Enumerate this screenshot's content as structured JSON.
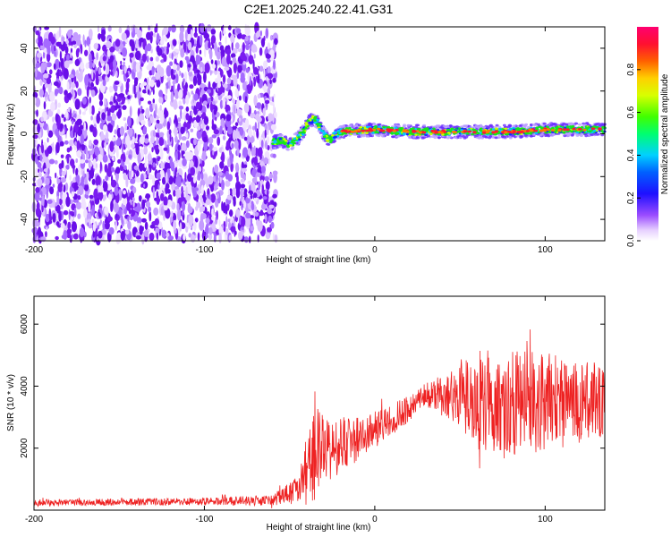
{
  "title": "C2E1.2025.240.22.41.G31",
  "colors": {
    "snr_line": "#ee2222",
    "spectrogram_noise": "#7a1cf0",
    "frame": "#000000"
  },
  "chart_data": [
    {
      "type": "heatmap",
      "name": "spectrogram",
      "xlabel": "Height of straight line (km)",
      "ylabel": "Frequency (Hz)",
      "xlim": [
        -200,
        135
      ],
      "ylim": [
        -50,
        50
      ],
      "x_ticks": [
        -200,
        -100,
        0,
        100
      ],
      "y_ticks": [
        -40,
        -20,
        0,
        20,
        40
      ],
      "noise_region_x": [
        -200,
        -58
      ],
      "signal_trace": {
        "x": [
          -60,
          -55,
          -50,
          -45,
          -42,
          -40,
          -38,
          -36,
          -34,
          -32,
          -30,
          -28,
          -26,
          -24,
          -22,
          -20,
          0,
          20,
          40,
          60,
          80,
          100,
          120,
          135
        ],
        "y": [
          -4,
          -3,
          -5,
          -2,
          1,
          4,
          6,
          7,
          6,
          3,
          0,
          -2,
          -3,
          -1,
          0,
          1,
          2,
          1,
          1,
          1,
          1,
          2,
          2,
          2
        ]
      },
      "colorbar": {
        "label": "Normalized spectral amplitude",
        "range": [
          0,
          1
        ],
        "ticks": [
          "0.0",
          "0.2",
          "0.4",
          "0.6",
          "0.8"
        ]
      }
    },
    {
      "type": "line",
      "name": "snr",
      "xlabel": "Height of straight line (km)",
      "ylabel": "SNR (10 * v/v)",
      "xlim": [
        -200,
        135
      ],
      "ylim": [
        0,
        6900
      ],
      "x_ticks": [
        -200,
        -100,
        0,
        100
      ],
      "y_ticks": [
        2000,
        4000,
        6000
      ],
      "envelope": {
        "x": [
          -200,
          -150,
          -100,
          -60,
          -45,
          -37,
          -33,
          -30,
          -20,
          -10,
          0,
          10,
          20,
          30,
          40,
          50,
          60,
          70,
          80,
          90,
          100,
          110,
          120,
          135
        ],
        "mean": [
          250,
          260,
          280,
          320,
          700,
          1600,
          2000,
          1800,
          2100,
          2300,
          2600,
          2900,
          3300,
          3700,
          3800,
          3650,
          3500,
          3400,
          3450,
          3500,
          3500,
          3500,
          3500,
          3550
        ],
        "amplitude": [
          100,
          110,
          130,
          170,
          450,
          1500,
          1700,
          1100,
          900,
          750,
          600,
          500,
          450,
          400,
          600,
          1200,
          1700,
          1800,
          1800,
          1700,
          1600,
          1500,
          1300,
          1200
        ]
      }
    }
  ]
}
